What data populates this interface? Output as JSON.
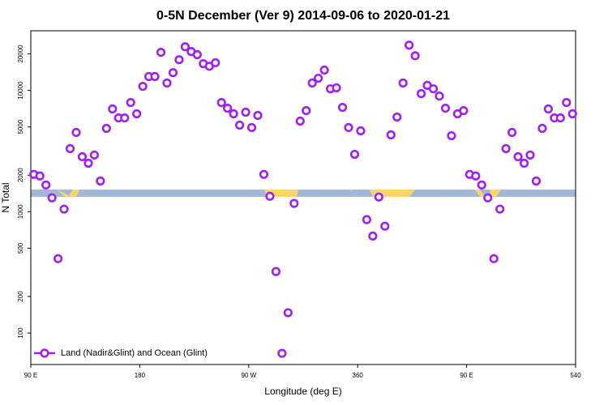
{
  "chart_data": {
    "type": "scatter",
    "title": "0-5N December (Ver 9)   2014-09-06 to 2020-01-21",
    "x_label": "Longitude (deg E)",
    "y_label": "N Total",
    "log_y": true,
    "xlim": [
      90,
      540
    ],
    "ylim": [
      55,
      31000
    ],
    "xticks": [
      {
        "value": 90,
        "label": "90 E"
      },
      180,
      {
        "value": 270,
        "label": "90 W"
      },
      360,
      {
        "value": 450,
        "label": "90 E"
      },
      540
    ],
    "yticks": [
      100,
      200,
      500,
      1000,
      2000,
      5000,
      10000,
      20000
    ],
    "legend_position": "bottom-left",
    "series": [
      {
        "name": "Land (Nadir&Glint) and Ocean (Glint)",
        "color": "#a020f0",
        "x": [
          92.5,
          97.5,
          102.5,
          107.5,
          112.5,
          117.5,
          122.5,
          127.5,
          132.5,
          137.5,
          142.5,
          147.5,
          152.5,
          157.5,
          162.5,
          167.5,
          172.5,
          177.5,
          182.5,
          187.5,
          192.5,
          197.5,
          202.5,
          207.5,
          212.5,
          217.5,
          222.5,
          227.5,
          232.5,
          237.5,
          242.5,
          247.5,
          252.5,
          257.5,
          262.5,
          267.5,
          272.5,
          277.5,
          282.5,
          287.5,
          292.5,
          297.5,
          302.5,
          307.5,
          312.5,
          317.5,
          322.5,
          327.5,
          332.5,
          337.5,
          342.5,
          347.5,
          352.5,
          357.5,
          362.5,
          367.5,
          372.5,
          377.5,
          382.5,
          387.5,
          392.5,
          397.5,
          402.5,
          407.5,
          412.5,
          417.5,
          422.5,
          427.5,
          432.5,
          437.5,
          442.5,
          447.5,
          452.5,
          457.5,
          462.5,
          467.5,
          472.5,
          477.5,
          482.5,
          487.5,
          492.5,
          497.5,
          502.5,
          507.5,
          512.5,
          517.5,
          522.5,
          527.5,
          532.5,
          537.5
        ],
        "values": [
          2030,
          1970,
          1660,
          1300,
          410,
          1050,
          3310,
          4500,
          2840,
          2510,
          2930,
          1790,
          4860,
          7030,
          5930,
          5930,
          7940,
          6410,
          10800,
          13000,
          13000,
          20600,
          11500,
          14000,
          17900,
          22900,
          20900,
          19700,
          16600,
          15800,
          16900,
          7940,
          7130,
          6410,
          5170,
          6610,
          4940,
          6220,
          2030,
          1340,
          321,
          68,
          147,
          1170,
          5580,
          6810,
          11500,
          12600,
          14700,
          10300,
          10500,
          7240,
          4940,
          2970,
          4640,
          860,
          630,
          1320,
          760,
          4300,
          6030,
          11500,
          23600,
          19300,
          9400,
          11000,
          10300,
          8980,
          7130,
          4230,
          6410,
          6810,
          2030,
          1970,
          1660,
          1300,
          410,
          1050,
          3310,
          4500,
          2840,
          2510,
          2930,
          1790,
          4860,
          7030,
          5930,
          5930,
          7940,
          6410
        ]
      }
    ]
  }
}
